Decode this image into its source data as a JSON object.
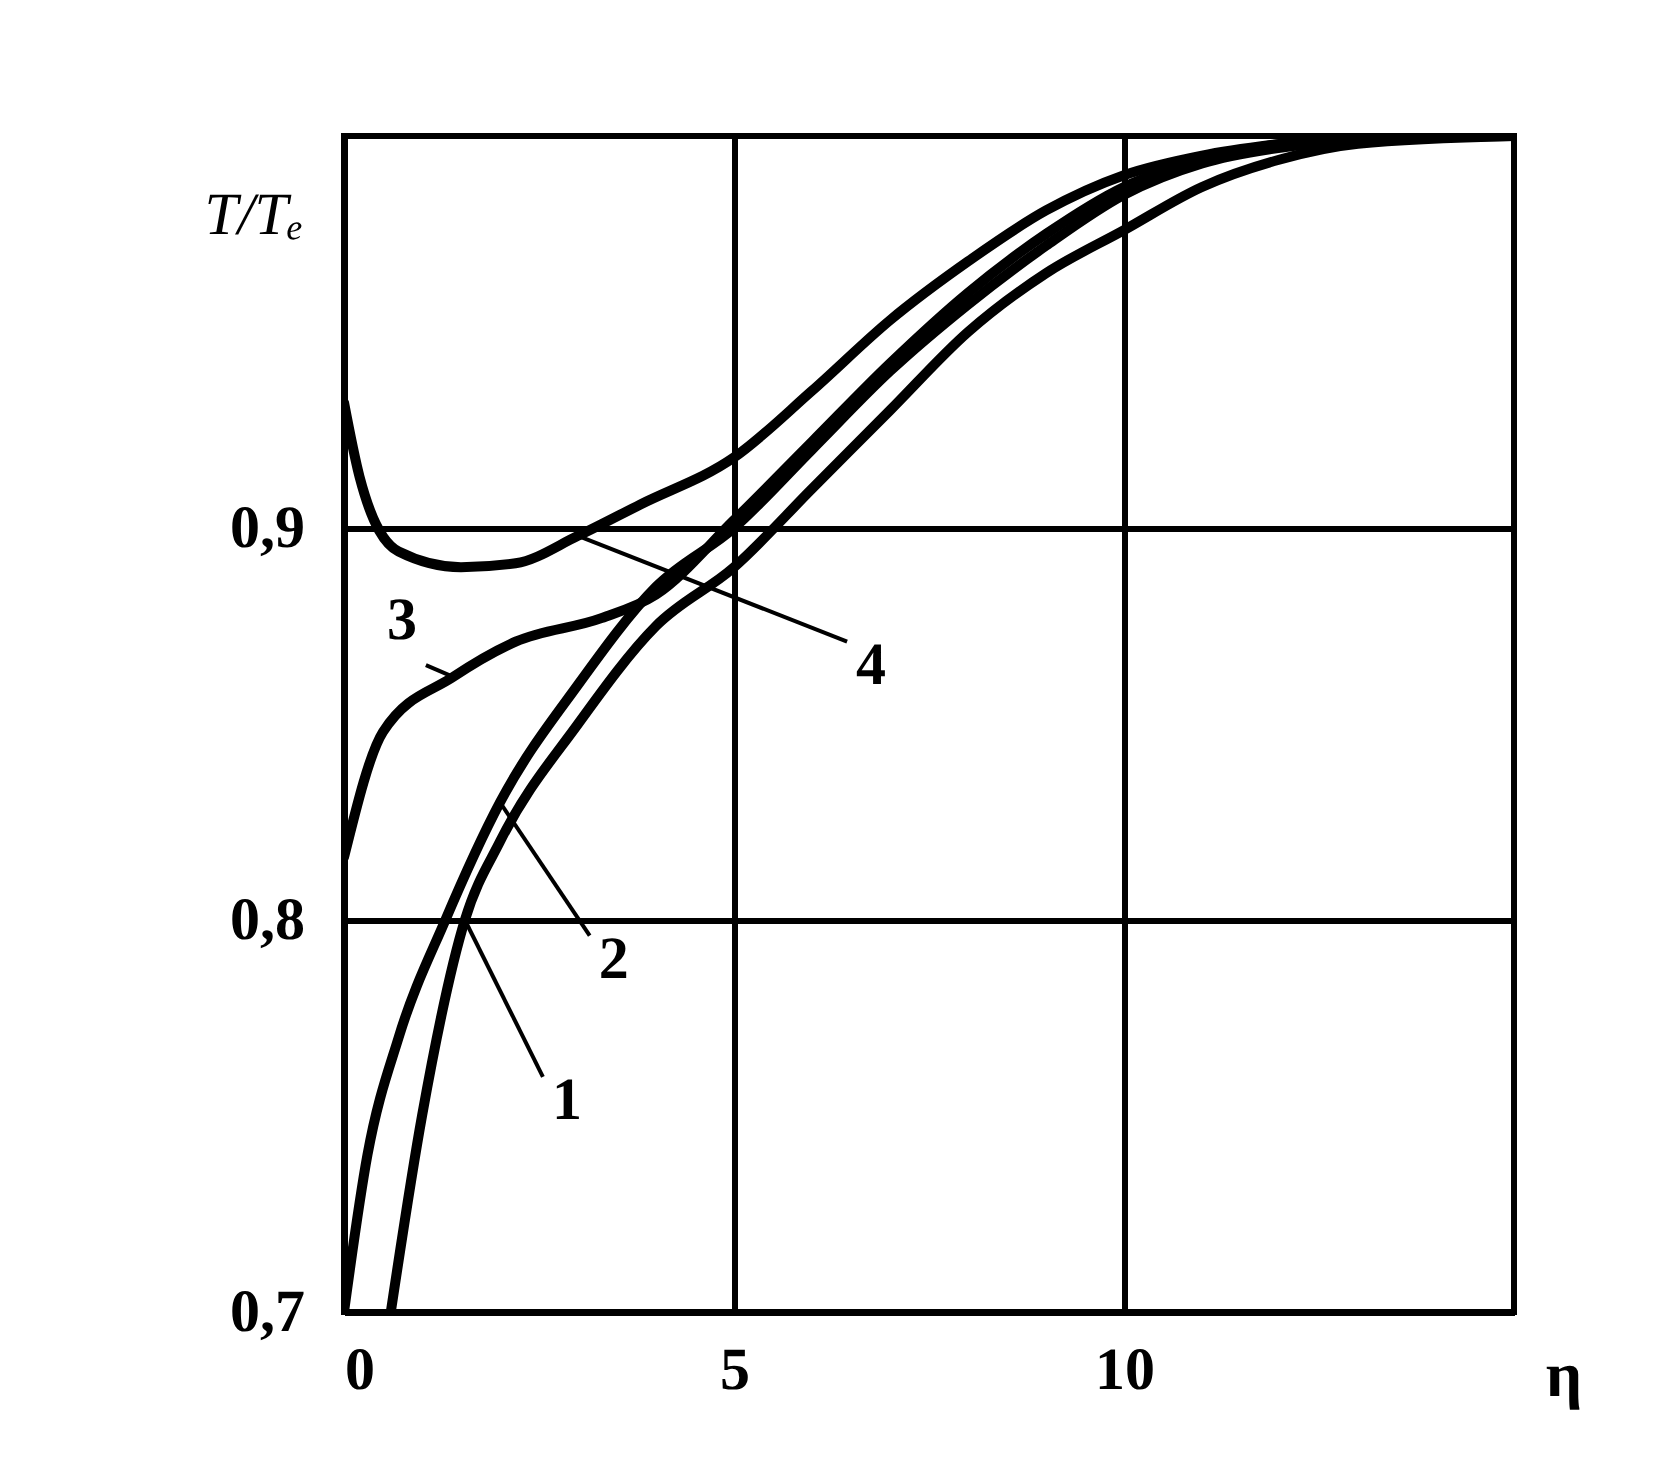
{
  "chart_data": {
    "type": "line",
    "xlabel": "η",
    "ylabel": "T/Tₑ",
    "xlim": [
      0,
      15
    ],
    "ylim": [
      0.7,
      1.0
    ],
    "xticks": [
      0,
      5,
      10
    ],
    "yticks": [
      {
        "value": 0.7,
        "label": "0,7"
      },
      {
        "value": 0.8,
        "label": "0,8"
      },
      {
        "value": 0.9,
        "label": "0,9"
      }
    ],
    "grid": true,
    "line_style": "solid",
    "marker": "none",
    "series": [
      {
        "name": "1",
        "color": "#000000",
        "x": [
          0.6,
          1,
          1.55,
          2,
          3,
          4,
          5,
          6,
          7,
          8,
          9,
          10,
          11,
          12,
          13,
          15
        ],
        "values": [
          0.7,
          0.75,
          0.8,
          0.82,
          0.85,
          0.875,
          0.89,
          0.91,
          0.93,
          0.95,
          0.965,
          0.976,
          0.987,
          0.994,
          0.998,
          1.0
        ]
      },
      {
        "name": "2",
        "color": "#000000",
        "x": [
          0,
          0.3,
          0.7,
          1.3,
          2,
          3,
          4,
          5,
          6,
          7,
          8,
          9,
          10,
          11,
          12,
          13,
          15
        ],
        "values": [
          0.7,
          0.74,
          0.77,
          0.8,
          0.83,
          0.86,
          0.885,
          0.9,
          0.92,
          0.94,
          0.957,
          0.972,
          0.985,
          0.993,
          0.997,
          0.999,
          1.0
        ]
      },
      {
        "name": "3",
        "color": "#000000",
        "x": [
          0,
          0.5,
          1.4,
          2.2,
          3.3,
          4,
          5,
          6,
          7,
          8,
          9,
          10,
          11,
          12,
          13,
          15
        ],
        "values": [
          0.816,
          0.848,
          0.862,
          0.871,
          0.877,
          0.883,
          0.902,
          0.922,
          0.942,
          0.96,
          0.975,
          0.987,
          0.994,
          0.998,
          1.0,
          1.0
        ]
      },
      {
        "name": "4",
        "color": "#000000",
        "x": [
          0,
          0.2,
          0.7,
          1.5,
          2.2,
          3,
          3.8,
          5,
          6,
          7,
          8,
          9,
          10,
          11,
          12,
          13,
          15
        ],
        "values": [
          0.932,
          0.913,
          0.894,
          0.89,
          0.891,
          0.898,
          0.906,
          0.918,
          0.935,
          0.953,
          0.968,
          0.981,
          0.99,
          0.995,
          0.998,
          1.0,
          1.0
        ]
      }
    ]
  }
}
